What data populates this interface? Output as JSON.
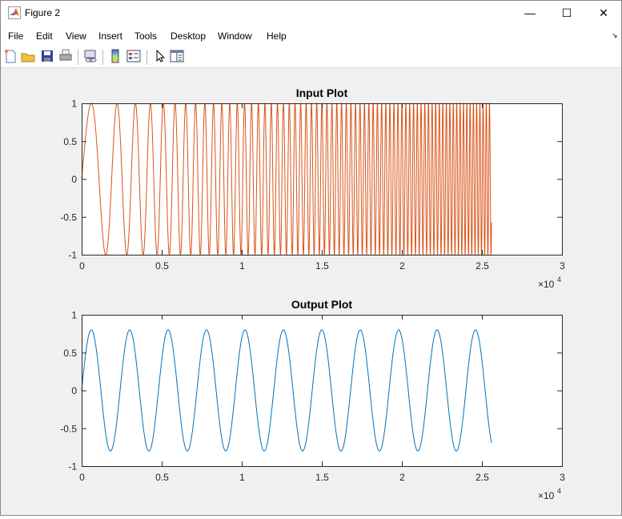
{
  "window": {
    "title": "Figure 2",
    "minimize": "—",
    "maximize": "☐",
    "close": "✕"
  },
  "menu": [
    "File",
    "Edit",
    "View",
    "Insert",
    "Tools",
    "Desktop",
    "Window",
    "Help"
  ],
  "toolbar": [
    "new-figure-icon",
    "open-file-icon",
    "save-icon",
    "print-icon",
    "link-icon",
    "colorbar-icon",
    "legend-icon",
    "pointer-icon",
    "property-inspector-icon"
  ],
  "chart_data": [
    {
      "type": "line",
      "title": "Input Plot",
      "xlim": [
        0,
        30000
      ],
      "ylim": [
        -1,
        1
      ],
      "xticks": [
        "0",
        "0.5",
        "1",
        "1.5",
        "2",
        "2.5",
        "3"
      ],
      "yticks": [
        "1",
        "0.5",
        "0",
        "-0.5",
        "-1"
      ],
      "x_exponent_label": "×10",
      "x_exponent": "4",
      "color": "#D95319",
      "series": [
        {
          "kind": "linear chirp",
          "x_range": [
            0,
            25600
          ],
          "amplitude": 1,
          "start_frequency_cycles_per_sample": 0.00036,
          "chirp_rate": 9.26e-08
        }
      ]
    },
    {
      "type": "line",
      "title": "Output Plot",
      "xlim": [
        0,
        30000
      ],
      "ylim": [
        -1,
        1
      ],
      "xticks": [
        "0",
        "0.5",
        "1",
        "1.5",
        "2",
        "2.5",
        "3"
      ],
      "yticks": [
        "1",
        "0.5",
        "0",
        "-0.5",
        "-1"
      ],
      "x_exponent_label": "×10",
      "x_exponent": "4",
      "color": "#0072BD",
      "series": [
        {
          "kind": "sine",
          "x_range": [
            0,
            25600
          ],
          "amplitude": 0.8,
          "period": 2400
        }
      ]
    }
  ]
}
